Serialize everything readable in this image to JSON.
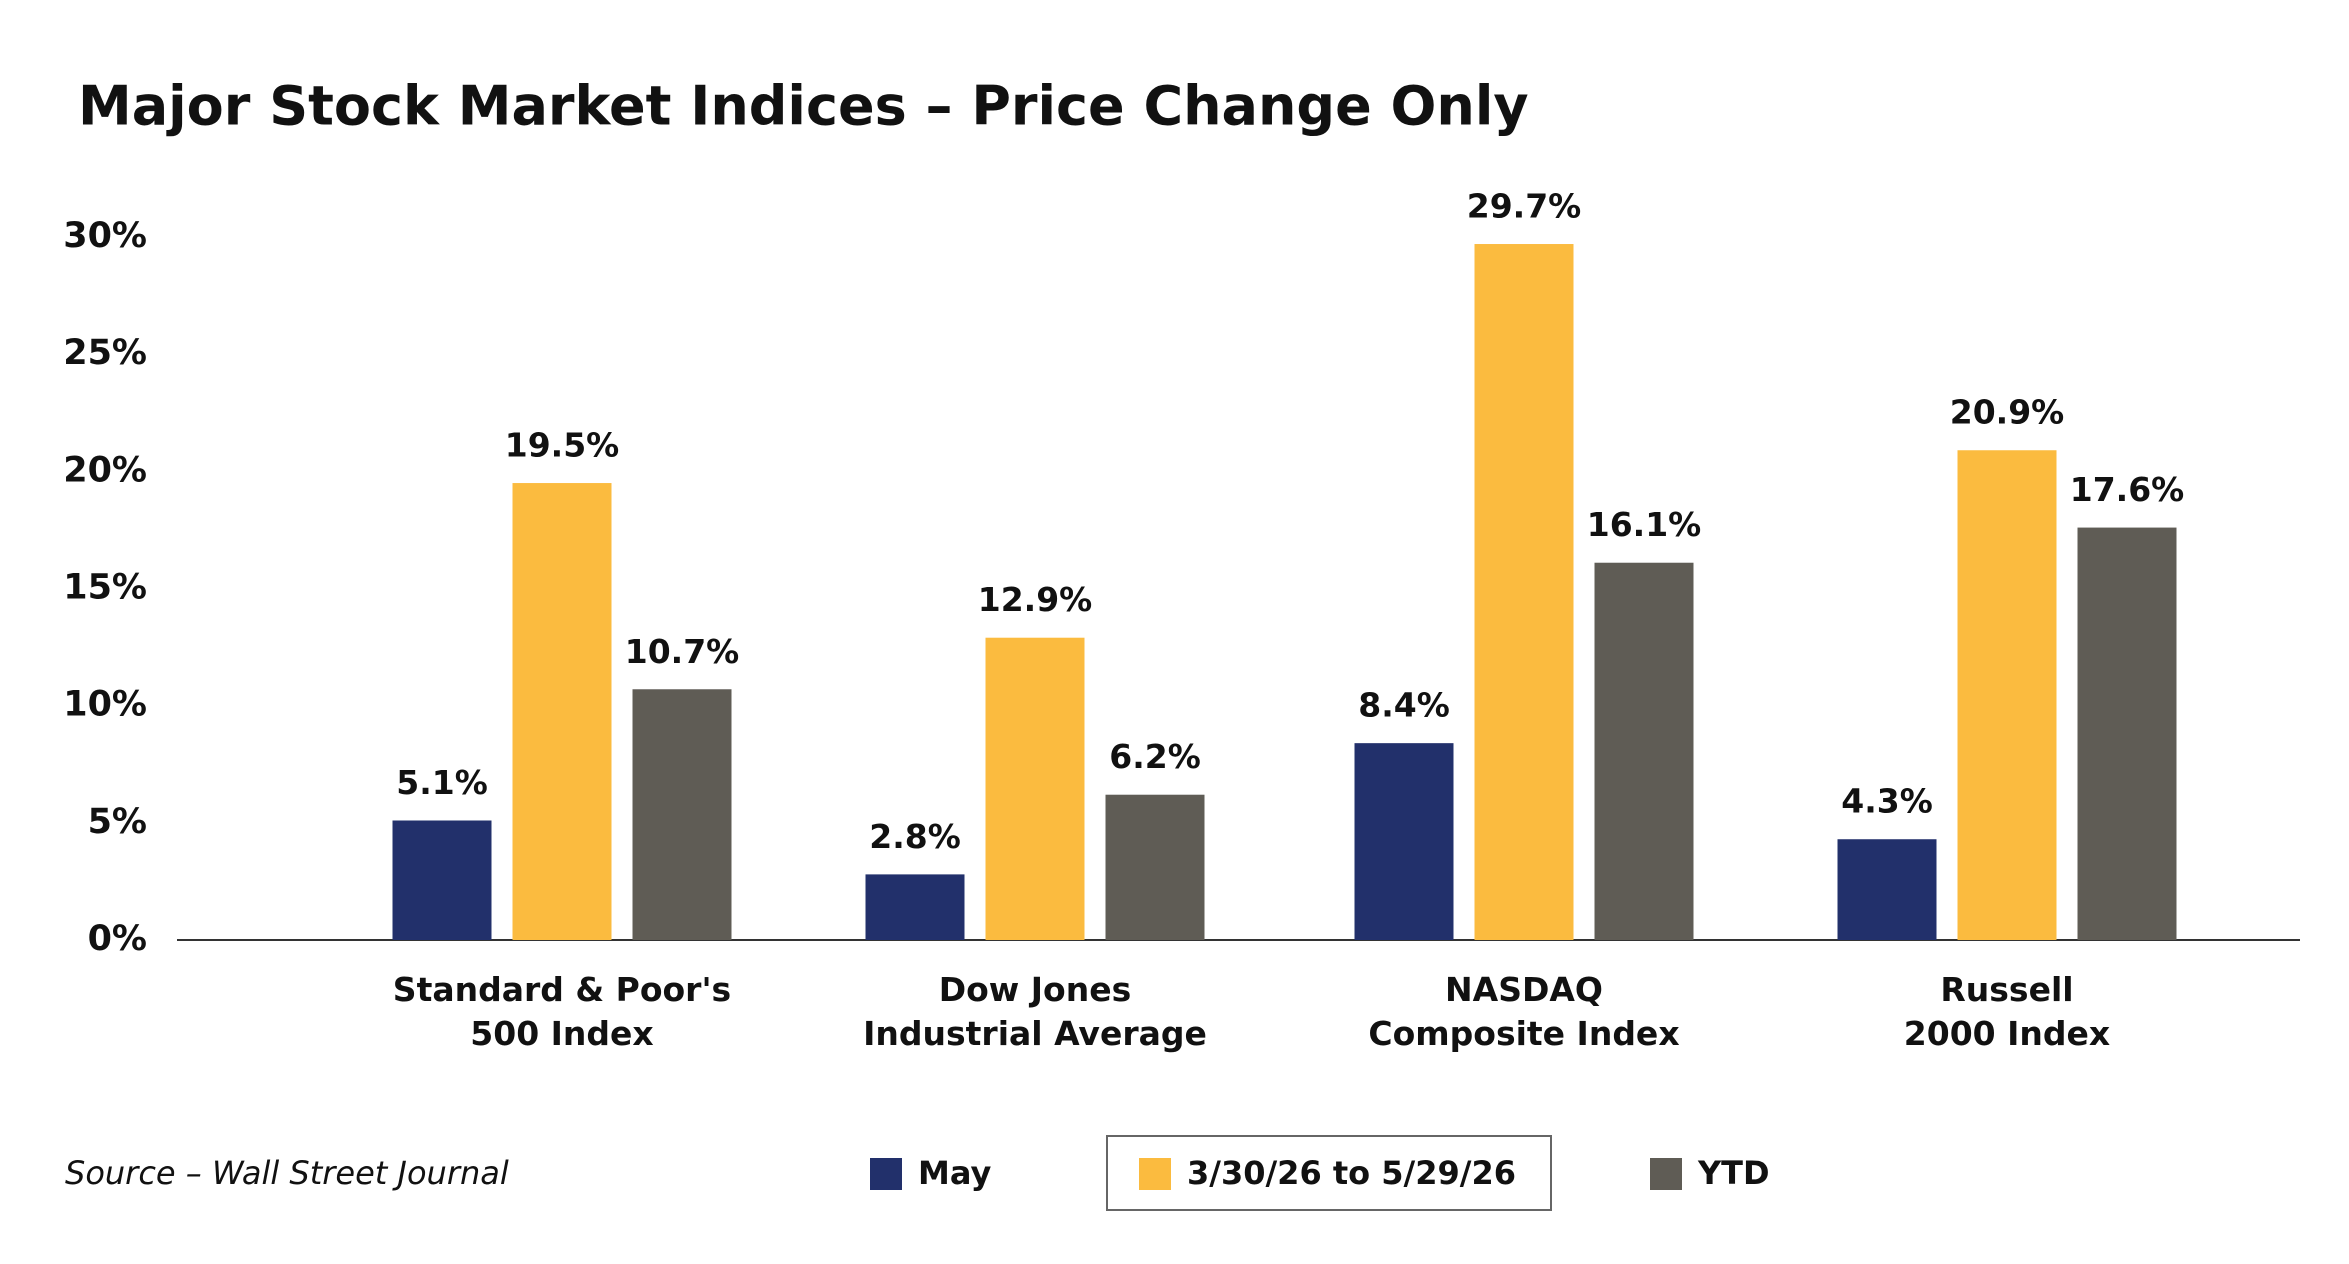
{
  "chart_data": {
    "type": "bar",
    "title": "Major Stock Market Indices – Price Change Only",
    "categories": [
      "Standard & Poor's\n500 Index",
      "Dow Jones\nIndustrial Average",
      "NASDAQ\nComposite Index",
      "Russell\n2000 Index"
    ],
    "series": [
      {
        "name": "May",
        "color": "#22306b",
        "values": [
          5.1,
          2.8,
          8.4,
          4.3
        ],
        "value_labels": [
          "5.1%",
          "2.8%",
          "8.4%",
          "4.3%"
        ]
      },
      {
        "name": "3/30/26 to 5/29/26",
        "color": "#fbbb3f",
        "values": [
          19.5,
          12.9,
          29.7,
          20.9
        ],
        "value_labels": [
          "19.5%",
          "12.9%",
          "29.7%",
          "20.9%"
        ]
      },
      {
        "name": "YTD",
        "color": "#5f5c55",
        "values": [
          10.7,
          6.2,
          16.1,
          17.6
        ],
        "value_labels": [
          "10.7%",
          "6.2%",
          "16.1%",
          "17.6%"
        ]
      }
    ],
    "ylim": [
      0,
      30
    ],
    "yticks": [
      {
        "value": 0,
        "label": "0%"
      },
      {
        "value": 5,
        "label": "5%"
      },
      {
        "value": 10,
        "label": "10%"
      },
      {
        "value": 15,
        "label": "15%"
      },
      {
        "value": 20,
        "label": "20%"
      },
      {
        "value": 25,
        "label": "25%"
      },
      {
        "value": 30,
        "label": "30%"
      }
    ],
    "grid": false,
    "source": "Source – Wall Street Journal"
  }
}
